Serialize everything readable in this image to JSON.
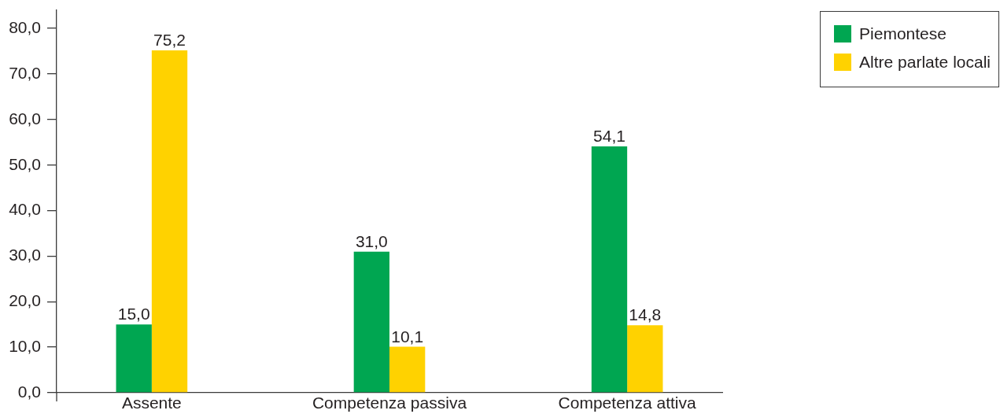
{
  "chart_data": {
    "type": "bar",
    "categories": [
      "Assente",
      "Competenza passiva",
      "Competenza attiva"
    ],
    "series": [
      {
        "name": "Piemontese",
        "color": "#00a651",
        "values": [
          15.0,
          31.0,
          54.1
        ],
        "value_labels": [
          "15,0",
          "31,0",
          "54,1"
        ]
      },
      {
        "name": "Altre parlate locali",
        "color": "#ffd200",
        "values": [
          75.2,
          10.1,
          14.8
        ],
        "value_labels": [
          "75,2",
          "10,1",
          "14,8"
        ]
      }
    ],
    "ylim": [
      0,
      84
    ],
    "yticks": [
      {
        "value": 0,
        "label": "0,0"
      },
      {
        "value": 10,
        "label": "10,0"
      },
      {
        "value": 20,
        "label": "20,0"
      },
      {
        "value": 30,
        "label": "30,0"
      },
      {
        "value": 40,
        "label": "40,0"
      },
      {
        "value": 50,
        "label": "50,0"
      },
      {
        "value": 60,
        "label": "60,0"
      },
      {
        "value": 70,
        "label": "70,0"
      },
      {
        "value": 80,
        "label": "80,0"
      }
    ],
    "legend": "top right"
  }
}
